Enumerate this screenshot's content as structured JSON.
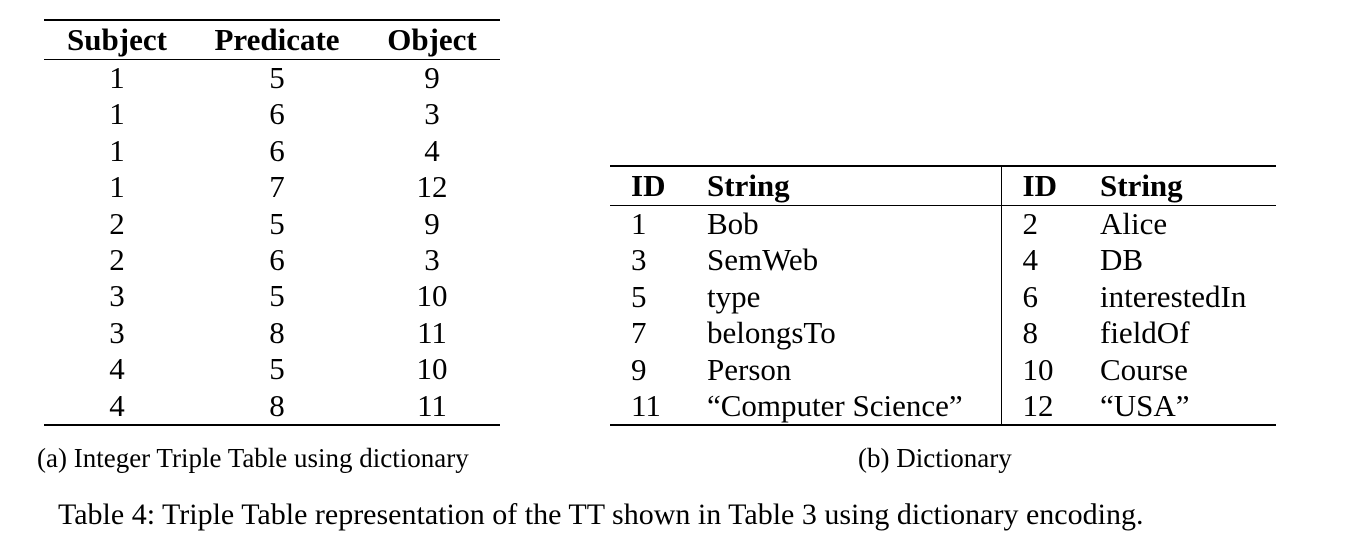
{
  "triple_table": {
    "headers": [
      "Subject",
      "Predicate",
      "Object"
    ],
    "rows": [
      [
        "1",
        "5",
        "9"
      ],
      [
        "1",
        "6",
        "3"
      ],
      [
        "1",
        "6",
        "4"
      ],
      [
        "1",
        "7",
        "12"
      ],
      [
        "2",
        "5",
        "9"
      ],
      [
        "2",
        "6",
        "3"
      ],
      [
        "3",
        "5",
        "10"
      ],
      [
        "3",
        "8",
        "11"
      ],
      [
        "4",
        "5",
        "10"
      ],
      [
        "4",
        "8",
        "11"
      ]
    ],
    "caption": "(a) Integer Triple Table using dictionary"
  },
  "dictionary": {
    "headers": [
      "ID",
      "String",
      "ID",
      "String"
    ],
    "rows": [
      [
        "1",
        "Bob",
        "2",
        "Alice"
      ],
      [
        "3",
        "SemWeb",
        "4",
        "DB"
      ],
      [
        "5",
        "type",
        "6",
        "interestedIn"
      ],
      [
        "7",
        "belongsTo",
        "8",
        "fieldOf"
      ],
      [
        "9",
        "Person",
        "10",
        "Course"
      ],
      [
        "11",
        "“Computer Science”",
        "12",
        "“USA”"
      ]
    ],
    "caption": "(b) Dictionary"
  },
  "main_caption": "Table 4: Triple Table representation of the TT shown in Table 3 using dictionary encoding."
}
